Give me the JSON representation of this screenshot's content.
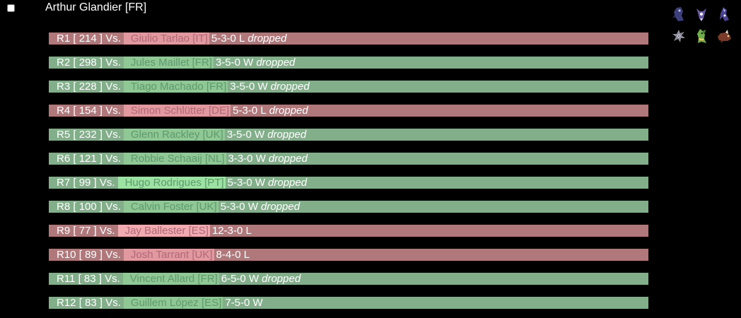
{
  "player": {
    "name": "Arthur Glandier [FR]",
    "checked": false
  },
  "rounds": [
    {
      "round": "R1",
      "opp_score": "[ 214 ]",
      "vs": "Vs.",
      "opponent": "Giulio Tarlao [IT]",
      "record": "5-3-0",
      "result": "L",
      "dropped": "dropped"
    },
    {
      "round": "R2",
      "opp_score": "[ 298 ]",
      "vs": "Vs.",
      "opponent": "Jules Maillet [FR]",
      "record": "3-5-0",
      "result": "W",
      "dropped": "dropped"
    },
    {
      "round": "R3",
      "opp_score": "[ 228 ]",
      "vs": "Vs.",
      "opponent": "Tiago Machado [FR]",
      "record": "3-5-0",
      "result": "W",
      "dropped": "dropped"
    },
    {
      "round": "R4",
      "opp_score": "[ 154 ]",
      "vs": "Vs.",
      "opponent": "Simon Schlütter [DE]",
      "record": "5-3-0",
      "result": "L",
      "dropped": "dropped"
    },
    {
      "round": "R5",
      "opp_score": "[ 232 ]",
      "vs": "Vs.",
      "opponent": "Glenn Rackley [UK]",
      "record": "3-5-0",
      "result": "W",
      "dropped": "dropped"
    },
    {
      "round": "R6",
      "opp_score": "[ 121 ]",
      "vs": "Vs.",
      "opponent": "Robbie Schaaij [NL]",
      "record": "3-3-0",
      "result": "W",
      "dropped": "dropped"
    },
    {
      "round": "R7",
      "opp_score": "[ 99 ]",
      "vs": "Vs.",
      "opponent": "Hugo Rodrigues [PT]",
      "record": "5-3-0",
      "result": "W",
      "dropped": "dropped",
      "highlight": true
    },
    {
      "round": "R8",
      "opp_score": "[ 100 ]",
      "vs": "Vs.",
      "opponent": "Calvin Foster [UK]",
      "record": "5-3-0",
      "result": "W",
      "dropped": "dropped"
    },
    {
      "round": "R9",
      "opp_score": "[ 77 ]",
      "vs": "Vs.",
      "opponent": "Jay Ballester [ES]",
      "record": "12-3-0",
      "result": "L",
      "dropped": "",
      "highlight": true
    },
    {
      "round": "R10",
      "opp_score": "[ 89 ]",
      "vs": "Vs.",
      "opponent": "Josh Tarrant [UK]",
      "record": "8-4-0",
      "result": "L",
      "dropped": ""
    },
    {
      "round": "R11",
      "opp_score": "[ 83 ]",
      "vs": "Vs.",
      "opponent": "Vincent Allard [FR]",
      "record": "6-5-0",
      "result": "W",
      "dropped": "dropped"
    },
    {
      "round": "R12",
      "opp_score": "[ 83 ]",
      "vs": "Vs.",
      "opponent": "Guillem López [ES]",
      "record": "7-5-0",
      "result": "W",
      "dropped": ""
    }
  ],
  "colors": {
    "win_bar": "#82af8a",
    "loss_bar": "#b1787b",
    "background": "#000000"
  },
  "team": [
    {
      "icon": "team-member-1-icon",
      "color": "#3d3f7a"
    },
    {
      "icon": "team-member-2-icon",
      "color": "#6a5aa0"
    },
    {
      "icon": "team-member-3-icon",
      "color": "#4b4390"
    },
    {
      "icon": "team-member-4-icon",
      "color": "#8c8c9a"
    },
    {
      "icon": "team-member-5-icon",
      "color": "#6fae4a"
    },
    {
      "icon": "team-member-6-icon",
      "color": "#7a3b2a"
    }
  ]
}
